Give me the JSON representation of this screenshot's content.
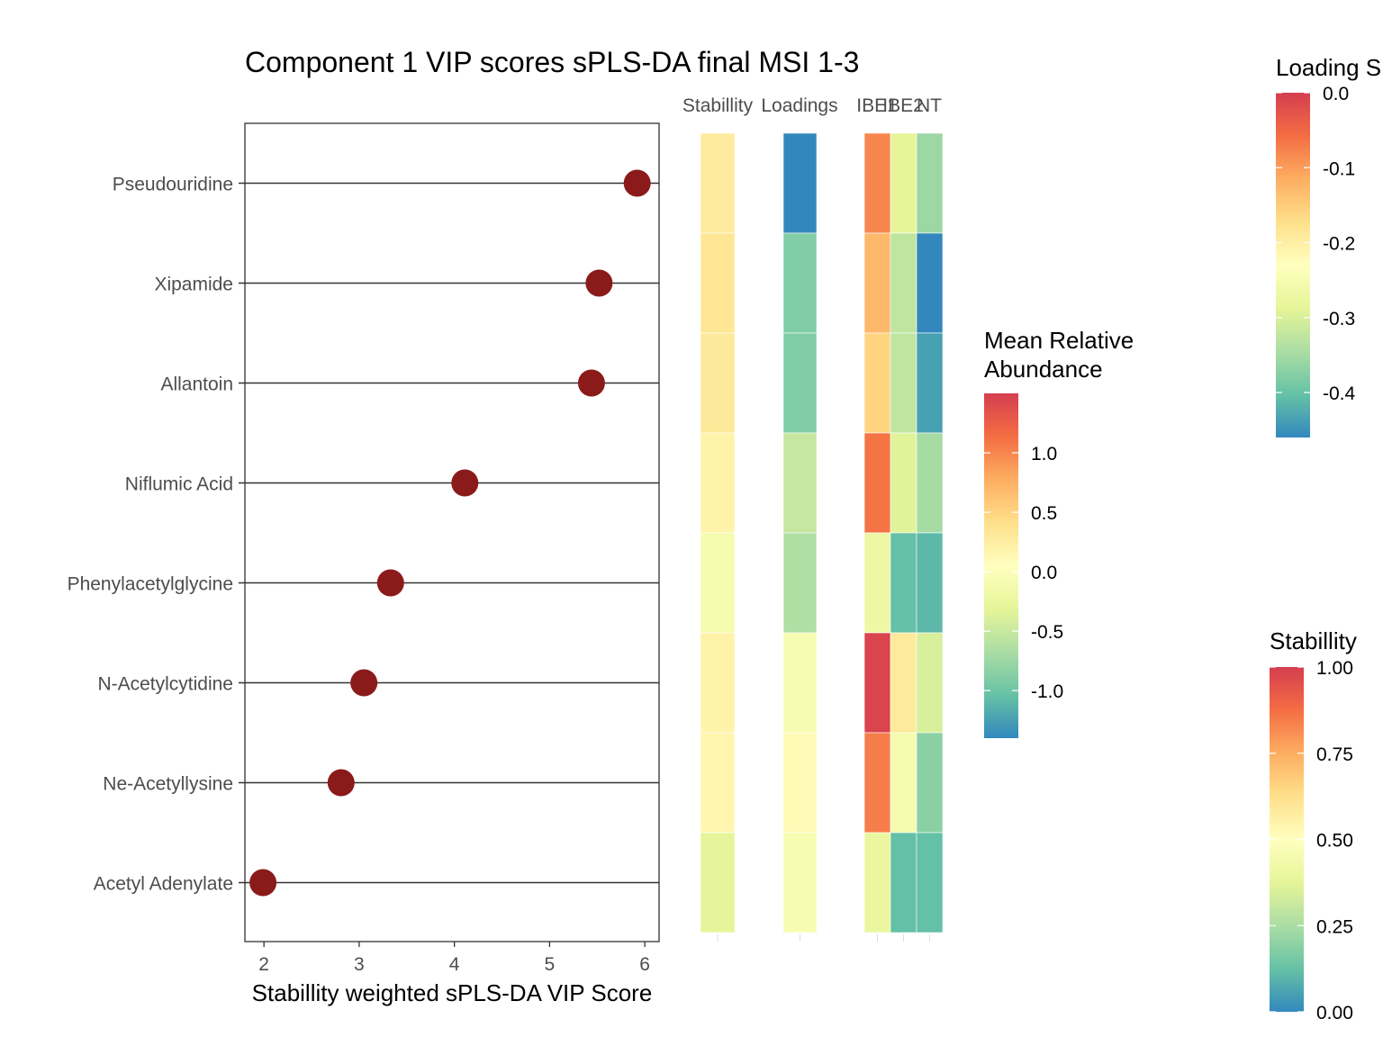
{
  "chart_data": [
    {
      "type": "scatter",
      "title": "Component 1 VIP scores sPLS-DA final MSI 1-3",
      "xlabel": "Stabillity weighted sPLS-DA VIP Score",
      "ylabel": "",
      "xlim": [
        1.8,
        6.15
      ],
      "xticks": [
        "2",
        "3",
        "4",
        "5",
        "6"
      ],
      "grid": false,
      "point_color": "#8b1a1a",
      "categories": [
        "Pseudouridine",
        "Xipamide",
        "Allantoin",
        "Niflumic Acid",
        "Phenylacetylglycine",
        "N-Acetylcytidine",
        "Ne-Acetyllysine",
        "Acetyl Adenylate"
      ],
      "values": [
        5.92,
        5.52,
        5.44,
        4.11,
        3.33,
        3.05,
        2.81,
        1.99
      ]
    },
    {
      "type": "heatmap",
      "columns": [
        "Stabillity",
        "Loadings",
        "IBE1",
        "IBE2",
        "NT"
      ],
      "rows": [
        "Pseudouridine",
        "Xipamide",
        "Allantoin",
        "Niflumic Acid",
        "Phenylacetylglycine",
        "N-Acetylcytidine",
        "Ne-Acetyllysine",
        "Acetyl Adenylate"
      ],
      "stability": [
        0.58,
        0.6,
        0.59,
        0.55,
        0.45,
        0.55,
        0.54,
        0.38
      ],
      "loadings": [
        -0.46,
        -0.38,
        -0.38,
        -0.32,
        -0.34,
        -0.25,
        -0.22,
        -0.25
      ],
      "mean_relative_abundance": {
        "IBE1": [
          1.0,
          0.7,
          0.5,
          1.1,
          -0.2,
          1.45,
          1.05,
          -0.25
        ],
        "IBE2": [
          -0.3,
          -0.55,
          -0.55,
          -0.35,
          -1.05,
          0.3,
          -0.1,
          -1.05
        ],
        "NT": [
          -0.75,
          -1.4,
          -1.25,
          -0.7,
          -1.1,
          -0.4,
          -0.85,
          -1.05
        ]
      },
      "legends": [
        {
          "title_lines": [
            "Loading S"
          ],
          "ticks": [
            "0.0",
            "-0.1",
            "-0.2",
            "-0.3",
            "-0.4"
          ],
          "range": [
            -0.46,
            0.0
          ],
          "position": "top-right"
        },
        {
          "title_lines": [
            "Mean Relative",
            "Abundance"
          ],
          "ticks": [
            "1.0",
            "0.5",
            "0.0",
            "-0.5",
            "-1.0"
          ],
          "range": [
            -1.4,
            1.5
          ],
          "position": "middle"
        },
        {
          "title_lines": [
            "Stabillity"
          ],
          "ticks": [
            "1.00",
            "0.75",
            "0.50",
            "0.25",
            "0.00"
          ],
          "range": [
            0.0,
            1.0
          ],
          "position": "bottom-right"
        }
      ],
      "palette": [
        "#3288bd",
        "#66c2a5",
        "#abdda4",
        "#e6f598",
        "#ffffbf",
        "#fee08b",
        "#fdae61",
        "#f46d43",
        "#d53e4f"
      ]
    }
  ]
}
